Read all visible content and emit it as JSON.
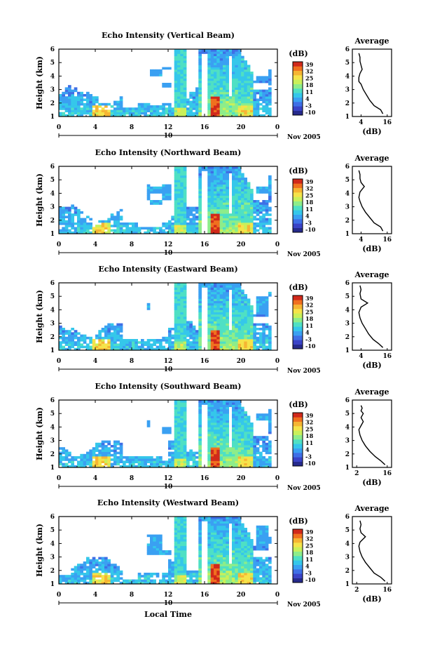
{
  "figure": {
    "xlabel": "Local Time",
    "date_label": "10",
    "month_label": "Nov 2005"
  },
  "colorbar": {
    "unit_label": "(dB)",
    "ticks": [
      "39",
      "32",
      "25",
      "18",
      "11",
      "4",
      "-3",
      "-10"
    ],
    "colors": [
      "#262a8c",
      "#3a43c7",
      "#3f6fe6",
      "#3aa0f2",
      "#35c7ea",
      "#4fe0c4",
      "#8ded8a",
      "#c9f05a",
      "#f5e34a",
      "#f6b533",
      "#f0701f",
      "#d1291b"
    ]
  },
  "chart_data": [
    {
      "type": "heatmap",
      "title": "Echo Intensity (Vertical Beam)",
      "ylabel": "Height (km)",
      "x_ticks": [
        "0",
        "4",
        "8",
        "12",
        "16",
        "20",
        "0"
      ],
      "y_ticks": [
        "1",
        "2",
        "3",
        "4",
        "5",
        "6"
      ],
      "xlim": [
        0,
        24
      ],
      "ylim": [
        1,
        6
      ],
      "avg_profile": {
        "title": "Average",
        "xlabel": "(dB)",
        "x_ticks": [
          "4",
          "16"
        ],
        "xlim": [
          0,
          18
        ],
        "y_ticks": [
          "1",
          "2",
          "3",
          "4",
          "5",
          "6"
        ],
        "x": [
          14,
          13,
          10,
          8,
          6.5,
          5,
          4,
          3,
          3,
          3.5,
          4.5,
          4,
          3.5,
          3.5,
          3
        ],
        "y": [
          1.2,
          1.5,
          1.8,
          2.2,
          2.6,
          3.0,
          3.4,
          3.6,
          3.9,
          4.2,
          4.5,
          4.8,
          5.1,
          5.4,
          5.7
        ]
      }
    },
    {
      "type": "heatmap",
      "title": "Echo Intensity (Northward Beam)",
      "ylabel": "Height (km)",
      "x_ticks": [
        "0",
        "4",
        "8",
        "12",
        "16",
        "20",
        "0"
      ],
      "y_ticks": [
        "1",
        "2",
        "3",
        "4",
        "5",
        "6"
      ],
      "xlim": [
        0,
        24
      ],
      "ylim": [
        1,
        6
      ],
      "avg_profile": {
        "title": "Average",
        "xlabel": "(dB)",
        "x_ticks": [
          "4",
          "16"
        ],
        "xlim": [
          0,
          18
        ],
        "y_ticks": [
          "1",
          "2",
          "3",
          "4",
          "5",
          "6"
        ],
        "x": [
          14,
          13,
          10,
          8,
          6,
          4.5,
          3.5,
          3,
          3.5,
          5.5,
          4,
          3.5,
          3.5,
          3
        ],
        "y": [
          1.2,
          1.5,
          1.8,
          2.2,
          2.6,
          3.0,
          3.4,
          3.7,
          4.1,
          4.5,
          4.8,
          5.1,
          5.4,
          5.7
        ]
      }
    },
    {
      "type": "heatmap",
      "title": "Echo Intensity (Eastward Beam)",
      "ylabel": "Height (km)",
      "x_ticks": [
        "0",
        "4",
        "8",
        "12",
        "16",
        "20",
        "0"
      ],
      "y_ticks": [
        "1",
        "2",
        "3",
        "4",
        "5",
        "6"
      ],
      "xlim": [
        0,
        24
      ],
      "ylim": [
        1,
        6
      ],
      "avg_profile": {
        "title": "Average",
        "xlabel": "(dB)",
        "x_ticks": [
          "4",
          "16"
        ],
        "xlim": [
          0,
          18
        ],
        "y_ticks": [
          "1",
          "2",
          "3",
          "4",
          "5",
          "6"
        ],
        "x": [
          14,
          12,
          9.5,
          7.5,
          6,
          4.5,
          3.5,
          3,
          4,
          7,
          4,
          3.5,
          4,
          3.5
        ],
        "y": [
          1.2,
          1.5,
          1.8,
          2.2,
          2.6,
          3.0,
          3.4,
          3.8,
          4.2,
          4.5,
          4.8,
          5.2,
          5.5,
          5.8
        ]
      }
    },
    {
      "type": "heatmap",
      "title": "Echo Intensity (Southward Beam)",
      "ylabel": "Height (km)",
      "x_ticks": [
        "0",
        "4",
        "8",
        "12",
        "16",
        "20",
        "0"
      ],
      "y_ticks": [
        "1",
        "2",
        "3",
        "4",
        "5",
        "6"
      ],
      "xlim": [
        0,
        24
      ],
      "ylim": [
        1,
        6
      ],
      "avg_profile": {
        "title": "Average",
        "xlabel": "(dB)",
        "x_ticks": [
          "2",
          "16"
        ],
        "xlim": [
          0,
          18
        ],
        "y_ticks": [
          "1",
          "2",
          "3",
          "4",
          "5",
          "6"
        ],
        "x": [
          15,
          13,
          10.5,
          8,
          6,
          4.5,
          3.5,
          3,
          4,
          5,
          4,
          5,
          4,
          4.5,
          4
        ],
        "y": [
          1.2,
          1.5,
          1.8,
          2.2,
          2.6,
          3.0,
          3.4,
          3.8,
          4.1,
          4.4,
          4.7,
          5.0,
          5.2,
          5.4,
          5.6
        ]
      }
    },
    {
      "type": "heatmap",
      "title": "Echo Intensity (Westward Beam)",
      "ylabel": "Height (km)",
      "x_ticks": [
        "0",
        "4",
        "8",
        "12",
        "16",
        "20",
        "0"
      ],
      "y_ticks": [
        "1",
        "2",
        "3",
        "4",
        "5",
        "6"
      ],
      "xlim": [
        0,
        24
      ],
      "ylim": [
        1,
        6
      ],
      "avg_profile": {
        "title": "Average",
        "xlabel": "(dB)",
        "x_ticks": [
          "2",
          "16"
        ],
        "xlim": [
          0,
          18
        ],
        "y_ticks": [
          "1",
          "2",
          "3",
          "4",
          "5",
          "6"
        ],
        "x": [
          15,
          13,
          10,
          8,
          6,
          4.5,
          3.5,
          3,
          3.5,
          6,
          4,
          3.5,
          4,
          3.5
        ],
        "y": [
          1.2,
          1.5,
          1.8,
          2.2,
          2.6,
          3.0,
          3.4,
          3.8,
          4.1,
          4.5,
          4.8,
          5.1,
          5.4,
          5.7
        ]
      }
    }
  ]
}
